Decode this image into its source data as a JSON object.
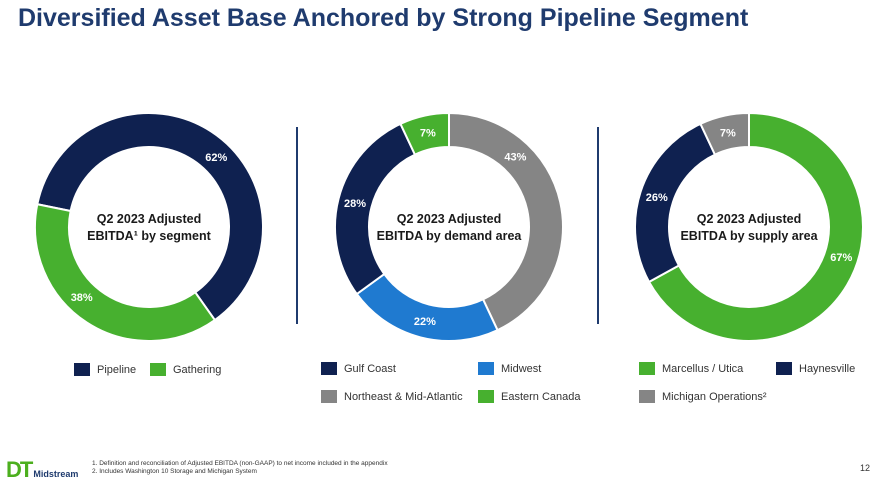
{
  "title": "Diversified Asset Base Anchored by Strong Pipeline Segment",
  "colors": {
    "navy": "#0f2150",
    "green": "#47b02f",
    "gray": "#858585",
    "blue": "#1f7ad0",
    "title": "#1f3b6e"
  },
  "chart_data": [
    {
      "type": "pie",
      "center_label": [
        "Q2 2023 Adjusted",
        "EBITDA¹ by segment"
      ],
      "labels": [
        "Pipeline",
        "Gathering"
      ],
      "values": [
        62,
        38
      ],
      "value_labels": [
        "62%",
        "38%"
      ],
      "colors": [
        "#0f2150",
        "#47b02f"
      ],
      "legend": [
        "Pipeline",
        "Gathering"
      ]
    },
    {
      "type": "pie",
      "center_label": [
        "Q2 2023 Adjusted",
        "EBITDA by demand area"
      ],
      "labels": [
        "Northeast & Mid-Atlantic",
        "Midwest",
        "Gulf Coast",
        "Eastern Canada"
      ],
      "values": [
        43,
        22,
        28,
        7
      ],
      "value_labels": [
        "43%",
        "22%",
        "28%",
        "7%"
      ],
      "colors": [
        "#858585",
        "#1f7ad0",
        "#0f2150",
        "#47b02f"
      ],
      "legend": [
        "Gulf Coast",
        "Midwest",
        "Northeast & Mid-Atlantic",
        "Eastern Canada"
      ]
    },
    {
      "type": "pie",
      "center_label": [
        "Q2 2023 Adjusted",
        "EBITDA by supply area"
      ],
      "labels": [
        "Marcellus / Utica",
        "Haynesville",
        "Michigan Operations²"
      ],
      "values": [
        67,
        26,
        7
      ],
      "value_labels": [
        "67%",
        "26%",
        "7%"
      ],
      "colors": [
        "#47b02f",
        "#0f2150",
        "#858585"
      ],
      "legend": [
        "Marcellus / Utica",
        "Haynesville",
        "Michigan Operations²"
      ]
    }
  ],
  "legends": {
    "segment": [
      {
        "label": "Pipeline",
        "color": "#0f2150"
      },
      {
        "label": "Gathering",
        "color": "#47b02f"
      }
    ],
    "demand": [
      {
        "label": "Gulf Coast",
        "color": "#0f2150"
      },
      {
        "label": "Midwest",
        "color": "#1f7ad0"
      },
      {
        "label": "Northeast & Mid-Atlantic",
        "color": "#858585"
      },
      {
        "label": "Eastern Canada",
        "color": "#47b02f"
      }
    ],
    "supply": [
      {
        "label": "Marcellus / Utica",
        "color": "#47b02f"
      },
      {
        "label": "Haynesville",
        "color": "#0f2150"
      },
      {
        "label": "Michigan Operations²",
        "color": "#858585"
      }
    ]
  },
  "footer": {
    "logo_text": "DT",
    "logo_sub": "Midstream",
    "notes": [
      "1.   Definition and reconciliation of Adjusted EBITDA (non-GAAP) to net income included in the appendix",
      "2.   Includes Washington 10 Storage and Michigan System"
    ],
    "page_number": "12"
  }
}
